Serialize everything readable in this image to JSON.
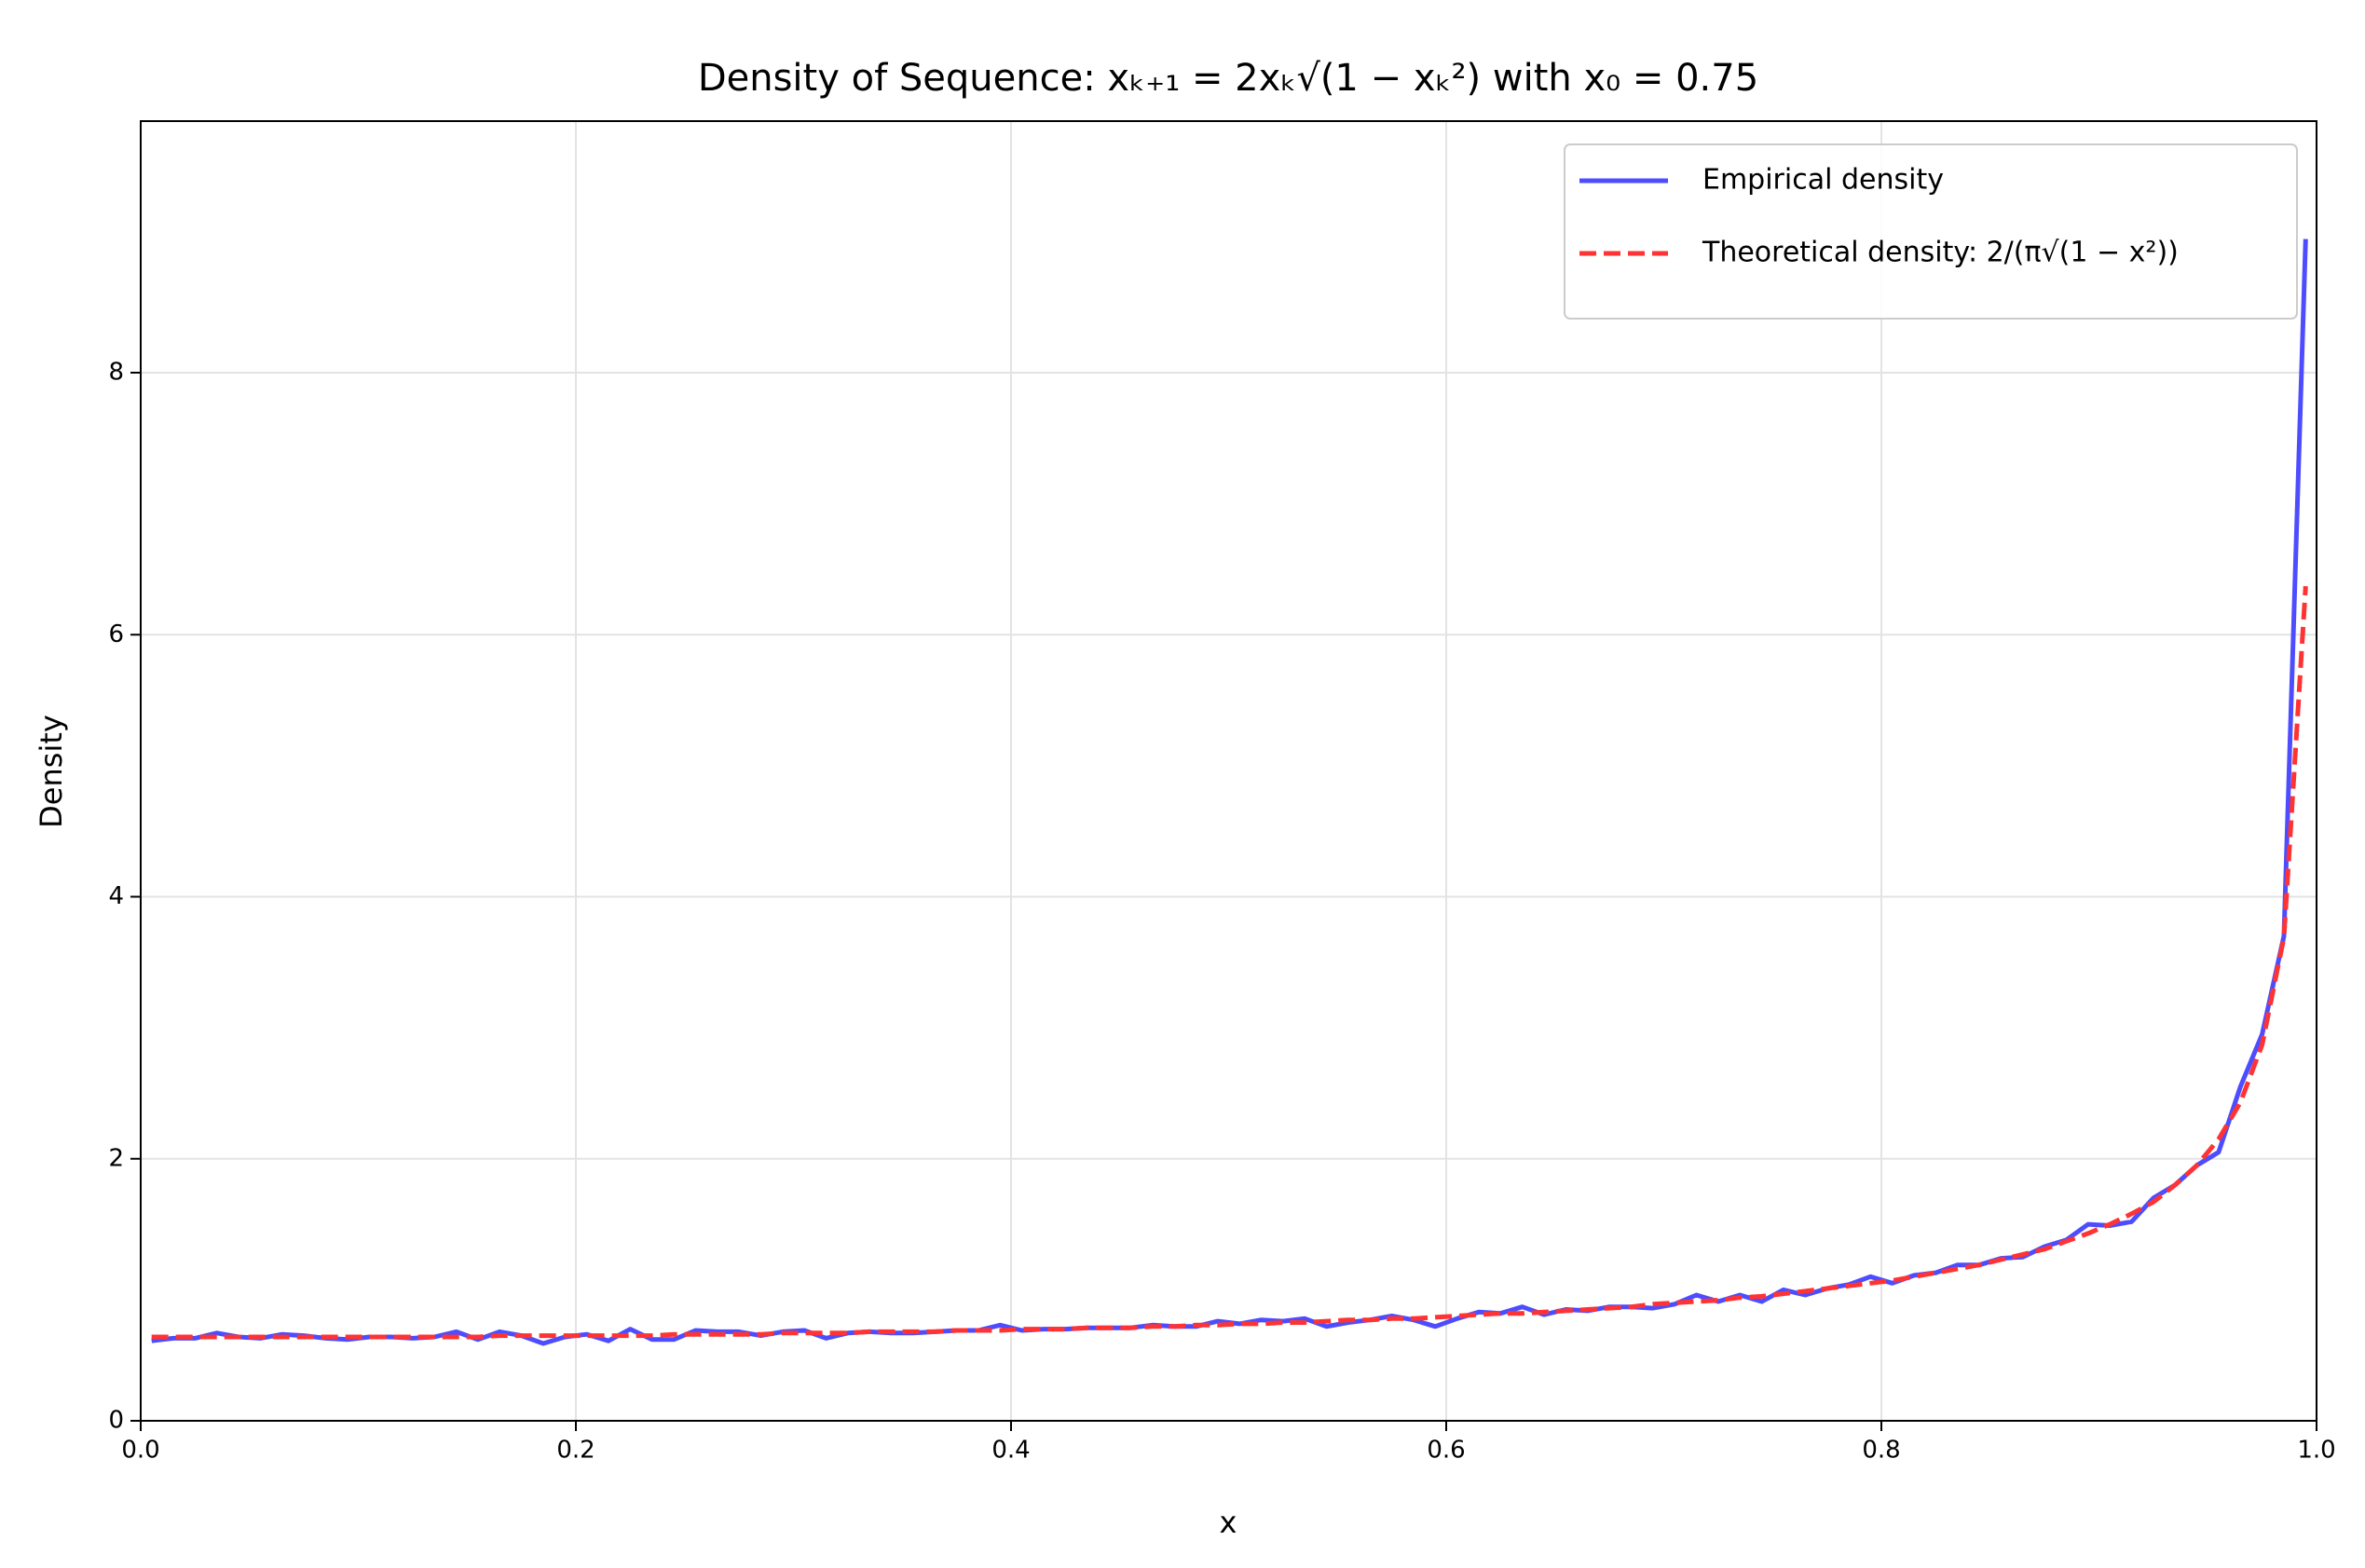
{
  "chart_data": {
    "type": "line",
    "title": "Density of Sequence: xₖ₊₁ = 2xₖ√(1 − xₖ²) with x₀ = 0.75",
    "x_label": "x",
    "y_label": "Density",
    "x": [
      0.005,
      0.015,
      0.025,
      0.035,
      0.045,
      0.055,
      0.065,
      0.075,
      0.085,
      0.095,
      0.105,
      0.115,
      0.125,
      0.135,
      0.145,
      0.155,
      0.165,
      0.175,
      0.185,
      0.195,
      0.205,
      0.215,
      0.225,
      0.235,
      0.245,
      0.255,
      0.265,
      0.275,
      0.285,
      0.295,
      0.305,
      0.315,
      0.325,
      0.335,
      0.345,
      0.355,
      0.365,
      0.375,
      0.385,
      0.395,
      0.405,
      0.415,
      0.425,
      0.435,
      0.445,
      0.455,
      0.465,
      0.475,
      0.485,
      0.495,
      0.505,
      0.515,
      0.525,
      0.535,
      0.545,
      0.555,
      0.565,
      0.575,
      0.585,
      0.595,
      0.605,
      0.615,
      0.625,
      0.635,
      0.645,
      0.655,
      0.665,
      0.675,
      0.685,
      0.695,
      0.705,
      0.715,
      0.725,
      0.735,
      0.745,
      0.755,
      0.765,
      0.775,
      0.785,
      0.795,
      0.805,
      0.815,
      0.825,
      0.835,
      0.845,
      0.855,
      0.865,
      0.875,
      0.885,
      0.895,
      0.905,
      0.915,
      0.925,
      0.935,
      0.945,
      0.955,
      0.965,
      0.975,
      0.985,
      0.995
    ],
    "series": [
      {
        "name": "Empirical density",
        "color": "#4d4dff",
        "dashed": false,
        "values": [
          0.61,
          0.63,
          0.63,
          0.67,
          0.64,
          0.63,
          0.66,
          0.65,
          0.63,
          0.62,
          0.64,
          0.64,
          0.63,
          0.64,
          0.68,
          0.62,
          0.68,
          0.65,
          0.59,
          0.64,
          0.66,
          0.61,
          0.7,
          0.62,
          0.62,
          0.69,
          0.68,
          0.68,
          0.65,
          0.68,
          0.69,
          0.63,
          0.67,
          0.68,
          0.67,
          0.67,
          0.68,
          0.69,
          0.69,
          0.73,
          0.69,
          0.7,
          0.7,
          0.71,
          0.71,
          0.71,
          0.73,
          0.72,
          0.72,
          0.76,
          0.74,
          0.77,
          0.76,
          0.78,
          0.72,
          0.75,
          0.77,
          0.8,
          0.77,
          0.72,
          0.78,
          0.83,
          0.82,
          0.87,
          0.81,
          0.85,
          0.84,
          0.87,
          0.87,
          0.86,
          0.89,
          0.96,
          0.91,
          0.96,
          0.91,
          1.0,
          0.96,
          1.01,
          1.04,
          1.1,
          1.05,
          1.11,
          1.13,
          1.19,
          1.19,
          1.24,
          1.25,
          1.33,
          1.38,
          1.5,
          1.49,
          1.52,
          1.7,
          1.8,
          1.95,
          2.05,
          2.55,
          2.95,
          3.7,
          9.02
        ]
      },
      {
        "name": "Theoretical density: 2/(π√(1 − x²))",
        "color": "#ff3333",
        "dashed": true,
        "values": [
          0.64,
          0.64,
          0.64,
          0.64,
          0.64,
          0.64,
          0.64,
          0.64,
          0.64,
          0.64,
          0.64,
          0.64,
          0.64,
          0.64,
          0.64,
          0.64,
          0.65,
          0.65,
          0.65,
          0.65,
          0.65,
          0.65,
          0.65,
          0.65,
          0.66,
          0.66,
          0.66,
          0.66,
          0.66,
          0.67,
          0.67,
          0.67,
          0.67,
          0.68,
          0.68,
          0.68,
          0.68,
          0.69,
          0.69,
          0.69,
          0.7,
          0.7,
          0.7,
          0.71,
          0.71,
          0.71,
          0.72,
          0.72,
          0.73,
          0.73,
          0.74,
          0.74,
          0.75,
          0.75,
          0.76,
          0.77,
          0.77,
          0.78,
          0.78,
          0.79,
          0.8,
          0.81,
          0.82,
          0.82,
          0.83,
          0.84,
          0.85,
          0.86,
          0.87,
          0.89,
          0.9,
          0.91,
          0.92,
          0.94,
          0.95,
          0.97,
          0.99,
          1.01,
          1.03,
          1.05,
          1.07,
          1.1,
          1.13,
          1.16,
          1.19,
          1.23,
          1.27,
          1.31,
          1.37,
          1.43,
          1.5,
          1.58,
          1.67,
          1.8,
          1.95,
          2.15,
          2.43,
          2.87,
          3.69,
          6.37
        ]
      }
    ],
    "xlim": [
      0,
      1
    ],
    "ylim": [
      0,
      9.92
    ],
    "xticks": [
      {
        "value": 0,
        "label": "0.0"
      },
      0.2,
      0.4,
      0.6,
      0.8,
      {
        "value": 1,
        "label": "1.0"
      }
    ],
    "yticks": [
      0,
      2,
      4,
      6,
      8
    ],
    "grid": true,
    "legend_position": "upper right"
  }
}
